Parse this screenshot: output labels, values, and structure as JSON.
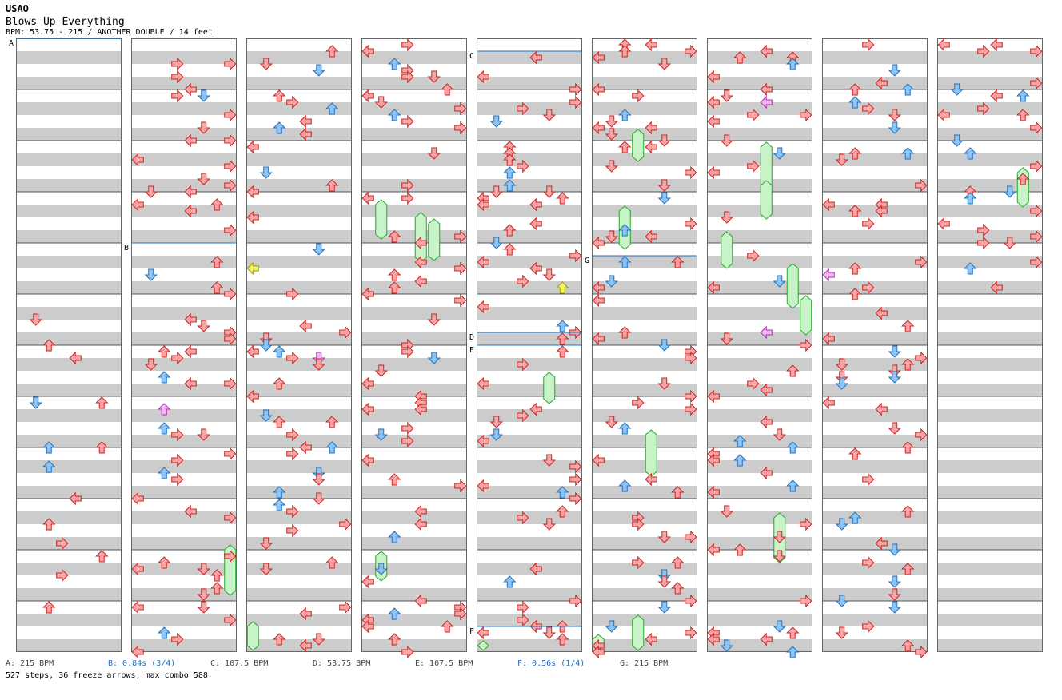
{
  "header": {
    "artist": "USAO",
    "title": "Blows Up Everything",
    "meta": "BPM: 53.75 - 215 / ANOTHER DOUBLE / 14 feet"
  },
  "legend": [
    {
      "text": "A: 215 BPM",
      "color": "#444444"
    },
    {
      "text": "B: 0.84s (3/4)",
      "color": "#1f6fbf"
    },
    {
      "text": "C: 107.5 BPM",
      "color": "#444444"
    },
    {
      "text": "D: 53.75 BPM",
      "color": "#444444"
    },
    {
      "text": "E: 107.5 BPM",
      "color": "#444444"
    },
    {
      "text": "F: 0.56s (1/4)",
      "color": "#1f6fbf"
    },
    {
      "text": "G: 215 BPM",
      "color": "#444444"
    }
  ],
  "stats": "527 steps, 36 freeze arrows, max combo 588",
  "markers": [
    {
      "label": "A",
      "column": 0,
      "measure": 0
    },
    {
      "label": "B",
      "column": 1,
      "measure": 4
    },
    {
      "label": "C",
      "column": 4,
      "measure": 0.25
    },
    {
      "label": "D",
      "column": 4,
      "measure": 5.75
    },
    {
      "label": "E",
      "column": 4,
      "measure": 6
    },
    {
      "label": "F",
      "column": 4,
      "measure": 11.5
    },
    {
      "label": "G",
      "column": 5,
      "measure": 4.25
    }
  ],
  "colors": {
    "red": "#f4a6a6",
    "red_stroke": "#cc2222",
    "blue": "#8fc4f2",
    "blue_stroke": "#1f6fbf",
    "pink": "#f4b8f4",
    "pink_stroke": "#b030b0",
    "yellow": "#f5f26a",
    "yellow_stroke": "#999900",
    "freeze": "#c8f2c8",
    "freeze_stroke": "#22aa22",
    "stripe": "#cccccc",
    "marker_line": "#1f6fbf"
  }
}
